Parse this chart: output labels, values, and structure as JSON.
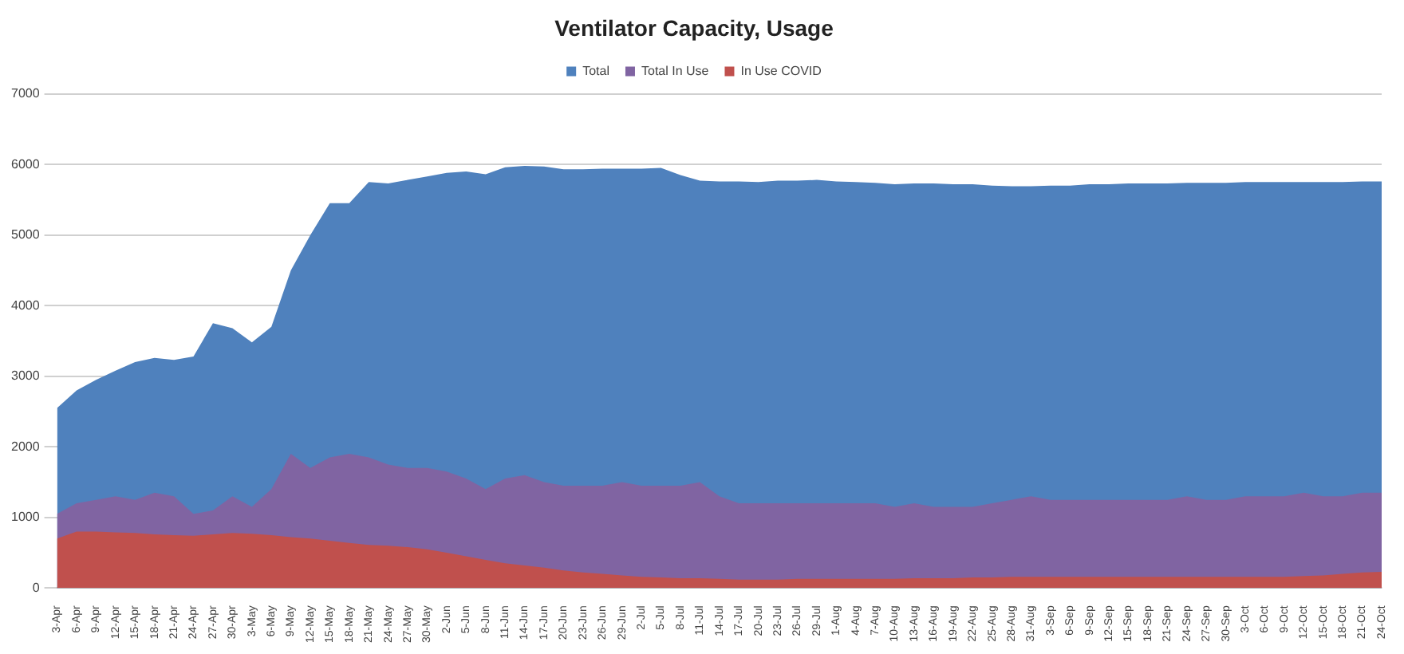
{
  "chart_data": {
    "type": "area",
    "title": "Ventilator Capacity, Usage",
    "categories": [
      "3-Apr",
      "6-Apr",
      "9-Apr",
      "12-Apr",
      "15-Apr",
      "18-Apr",
      "21-Apr",
      "24-Apr",
      "27-Apr",
      "30-Apr",
      "3-May",
      "6-May",
      "9-May",
      "12-May",
      "15-May",
      "18-May",
      "21-May",
      "24-May",
      "27-May",
      "30-May",
      "2-Jun",
      "5-Jun",
      "8-Jun",
      "11-Jun",
      "14-Jun",
      "17-Jun",
      "20-Jun",
      "23-Jun",
      "26-Jun",
      "29-Jun",
      "2-Jul",
      "5-Jul",
      "8-Jul",
      "11-Jul",
      "14-Jul",
      "17-Jul",
      "20-Jul",
      "23-Jul",
      "26-Jul",
      "29-Jul",
      "1-Aug",
      "4-Aug",
      "7-Aug",
      "10-Aug",
      "13-Aug",
      "16-Aug",
      "19-Aug",
      "22-Aug",
      "25-Aug",
      "28-Aug",
      "31-Aug",
      "3-Sep",
      "6-Sep",
      "9-Sep",
      "12-Sep",
      "15-Sep",
      "18-Sep",
      "21-Sep",
      "24-Sep",
      "27-Sep",
      "30-Sep",
      "3-Oct",
      "6-Oct",
      "9-Oct",
      "12-Oct",
      "15-Oct",
      "18-Oct",
      "21-Oct",
      "24-Oct"
    ],
    "series": [
      {
        "name": "Total",
        "color": "#4f81bd",
        "values": [
          2550,
          2800,
          2950,
          3080,
          3200,
          3260,
          3230,
          3280,
          3750,
          3680,
          3480,
          3700,
          4500,
          5000,
          5450,
          5450,
          5750,
          5730,
          5780,
          5830,
          5880,
          5900,
          5860,
          5960,
          5980,
          5970,
          5930,
          5930,
          5940,
          5940,
          5940,
          5950,
          5850,
          5770,
          5760,
          5760,
          5750,
          5770,
          5770,
          5780,
          5760,
          5750,
          5740,
          5720,
          5730,
          5730,
          5720,
          5720,
          5700,
          5690,
          5690,
          5700,
          5700,
          5720,
          5720,
          5730,
          5730,
          5730,
          5740,
          5740,
          5740,
          5750,
          5750,
          5750,
          5750,
          5750,
          5750,
          5760,
          5760
        ]
      },
      {
        "name": "Total In Use",
        "color": "#8064a2",
        "values": [
          1050,
          1200,
          1250,
          1300,
          1250,
          1350,
          1300,
          1050,
          1100,
          1300,
          1150,
          1400,
          1900,
          1700,
          1850,
          1900,
          1850,
          1750,
          1700,
          1700,
          1650,
          1550,
          1400,
          1550,
          1600,
          1500,
          1450,
          1450,
          1450,
          1500,
          1450,
          1450,
          1450,
          1500,
          1300,
          1200,
          1200,
          1200,
          1200,
          1200,
          1200,
          1200,
          1200,
          1150,
          1200,
          1150,
          1150,
          1150,
          1200,
          1250,
          1300,
          1250,
          1250,
          1250,
          1250,
          1250,
          1250,
          1250,
          1300,
          1250,
          1250,
          1300,
          1300,
          1300,
          1350,
          1300,
          1300,
          1350,
          1350
        ]
      },
      {
        "name": "In Use COVID",
        "color": "#c0504d",
        "values": [
          700,
          800,
          800,
          790,
          780,
          760,
          750,
          740,
          760,
          780,
          770,
          750,
          720,
          700,
          670,
          640,
          610,
          600,
          580,
          550,
          500,
          450,
          400,
          350,
          320,
          290,
          250,
          220,
          200,
          180,
          160,
          150,
          140,
          140,
          130,
          120,
          120,
          120,
          130,
          130,
          130,
          130,
          130,
          130,
          140,
          140,
          140,
          150,
          150,
          160,
          160,
          160,
          160,
          160,
          160,
          160,
          160,
          160,
          160,
          160,
          160,
          160,
          160,
          160,
          170,
          180,
          200,
          220,
          230
        ]
      }
    ],
    "ylim": [
      0,
      7000
    ],
    "yticks": [
      0,
      1000,
      2000,
      3000,
      4000,
      5000,
      6000,
      7000
    ],
    "grid": "y",
    "legend": "top"
  }
}
